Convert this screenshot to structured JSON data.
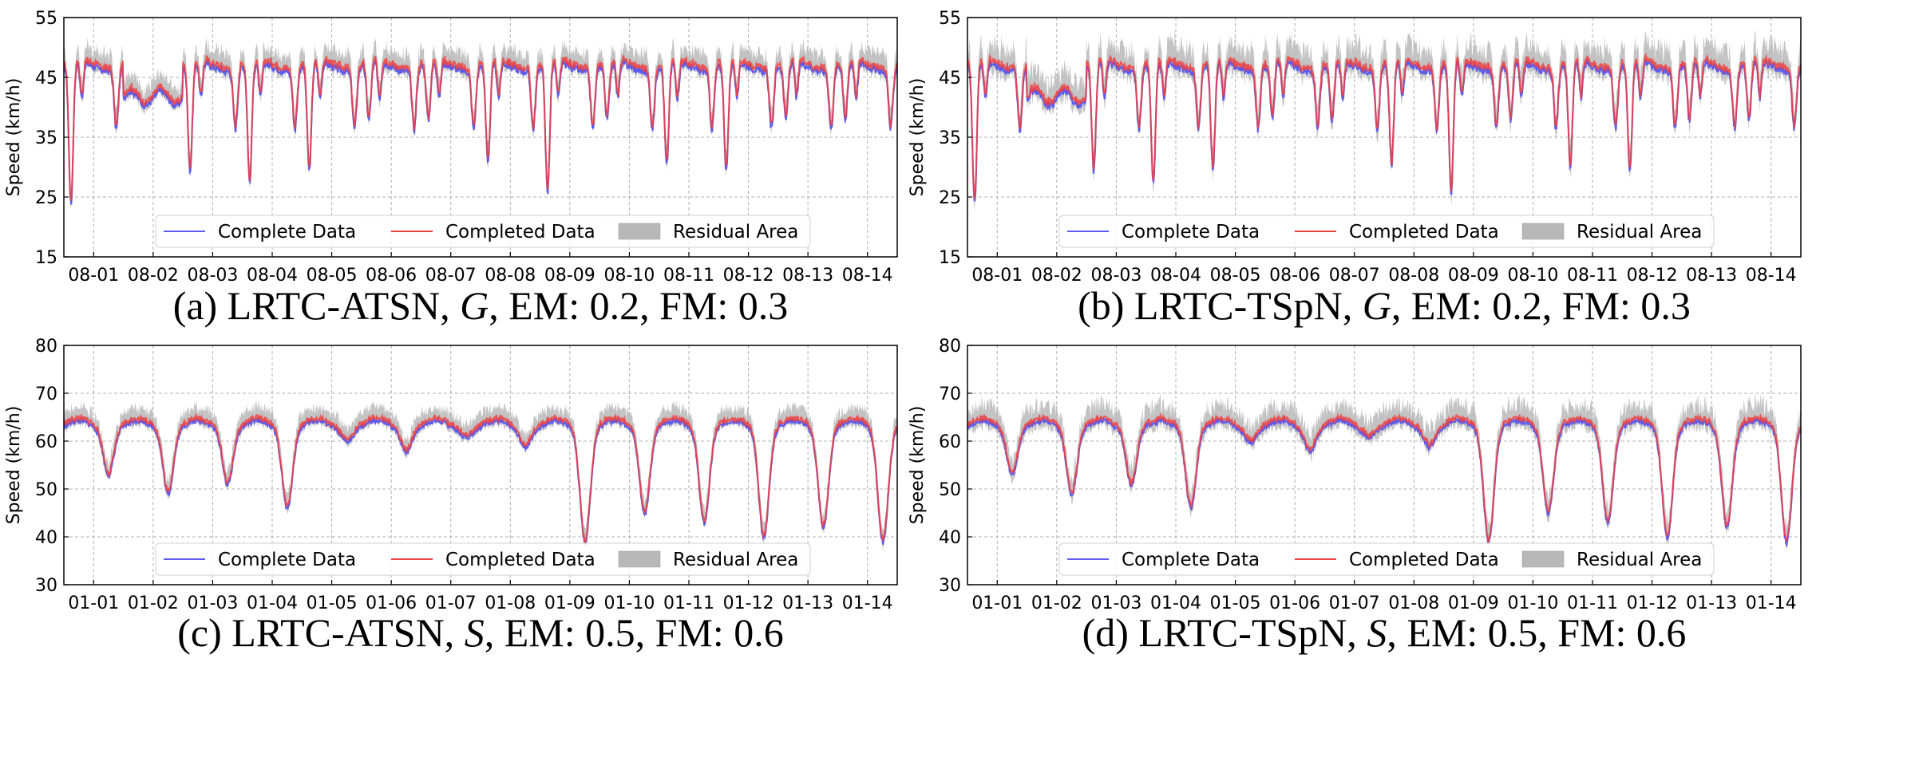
{
  "colors": {
    "complete": "#5b5bf0",
    "completed": "#f04040",
    "residual": "#b8b8b8",
    "grid": "#b0b0b0"
  },
  "chart_data": [
    {
      "type": "line",
      "ylabel": "Speed (km/h)",
      "ylim": [
        15,
        55
      ],
      "yticks": [
        15,
        25,
        35,
        45,
        55
      ],
      "x_tick_labels": [
        "08-01",
        "08-02",
        "08-03",
        "08-04",
        "08-05",
        "08-06",
        "08-07",
        "08-08",
        "08-09",
        "08-10",
        "08-11",
        "08-12",
        "08-13",
        "08-14"
      ],
      "caption": {
        "prefix": "(a) LRTC-ATSN, ",
        "symbol": "G",
        "suffix": ", EM: 0.2, FM: 0.3"
      },
      "legend": [
        "Complete Data",
        "Completed Data",
        "Residual Area"
      ],
      "profile": {
        "day_base": 46.5,
        "night_base": 41,
        "dip_scale": 1.0
      },
      "min_values": [
        21,
        null,
        27,
        25,
        27,
        null,
        null,
        28,
        23,
        null,
        28,
        27,
        null,
        null
      ]
    },
    {
      "type": "line",
      "ylabel": "Speed (km/h)",
      "ylim": [
        15,
        55
      ],
      "yticks": [
        15,
        25,
        35,
        45,
        55
      ],
      "x_tick_labels": [
        "08-01",
        "08-02",
        "08-03",
        "08-04",
        "08-05",
        "08-06",
        "08-07",
        "08-08",
        "08-09",
        "08-10",
        "08-11",
        "08-12",
        "08-13",
        "08-14"
      ],
      "caption": {
        "prefix": "(b) LRTC-TSpN, ",
        "symbol": "G",
        "suffix": ", EM: 0.2, FM: 0.3"
      },
      "legend": [
        "Complete Data",
        "Completed Data",
        "Residual Area"
      ],
      "profile": {
        "day_base": 46.5,
        "night_base": 41,
        "dip_scale": 1.0
      },
      "min_values": [
        21,
        null,
        27,
        25,
        27,
        null,
        null,
        28,
        23,
        null,
        28,
        27,
        null,
        null
      ]
    },
    {
      "type": "line",
      "ylabel": "Speed (km/h)",
      "ylim": [
        30,
        80
      ],
      "yticks": [
        30,
        40,
        50,
        60,
        70,
        80
      ],
      "x_tick_labels": [
        "01-01",
        "01-02",
        "01-03",
        "01-04",
        "01-05",
        "01-06",
        "01-07",
        "01-08",
        "01-09",
        "01-10",
        "01-11",
        "01-12",
        "01-13",
        "01-14"
      ],
      "caption": {
        "prefix": "(c) LRTC-ATSN, ",
        "symbol": "S",
        "suffix": ", EM: 0.5, FM: 0.6"
      },
      "legend": [
        "Complete Data",
        "Completed Data",
        "Residual Area"
      ],
      "daily_min": [
        54,
        50,
        52,
        47,
        61,
        59,
        62,
        60,
        40,
        46,
        44,
        41,
        43,
        40
      ]
    },
    {
      "type": "line",
      "ylabel": "Speed (km/h)",
      "ylim": [
        30,
        80
      ],
      "yticks": [
        30,
        40,
        50,
        60,
        70,
        80
      ],
      "x_tick_labels": [
        "01-01",
        "01-02",
        "01-03",
        "01-04",
        "01-05",
        "01-06",
        "01-07",
        "01-08",
        "01-09",
        "01-10",
        "01-11",
        "01-12",
        "01-13",
        "01-14"
      ],
      "caption": {
        "prefix": "(d) LRTC-TSpN, ",
        "symbol": "S",
        "suffix": ", EM: 0.5, FM: 0.6"
      },
      "legend": [
        "Complete Data",
        "Completed Data",
        "Residual Area"
      ],
      "daily_min": [
        54,
        50,
        52,
        47,
        61,
        59,
        62,
        60,
        40,
        46,
        44,
        41,
        43,
        40
      ]
    }
  ]
}
